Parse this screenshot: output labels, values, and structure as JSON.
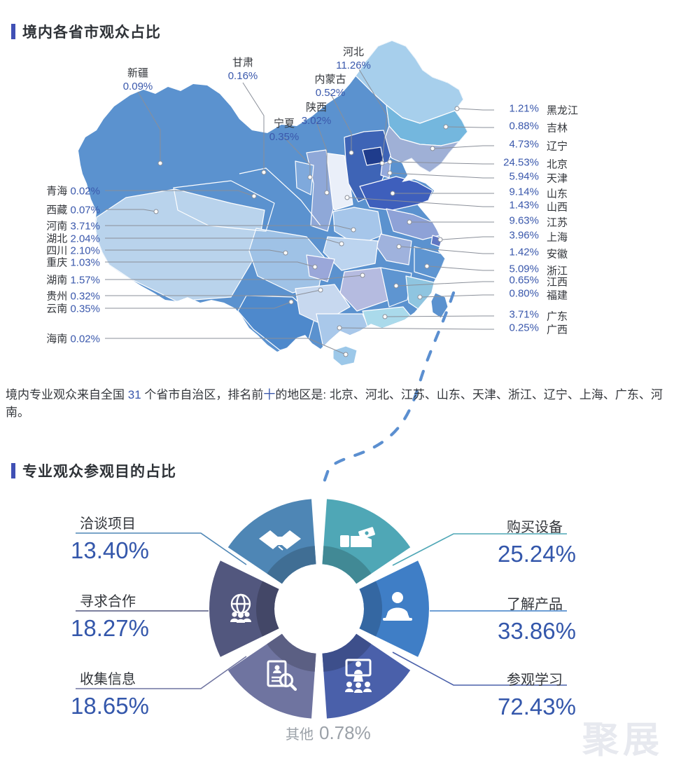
{
  "sections": [
    {
      "title": "境内各省市观众占比"
    },
    {
      "title": "专业观众参观目的占比"
    }
  ],
  "summary": {
    "text_before_count": "境内专业观众来自全国 ",
    "count": "31",
    "text_after_count": " 个省市自治区，排名前",
    "highlight": "十",
    "text_after_highlight": "的地区是: 北京、河北、江苏、山东、天津、浙江、辽宁、上海、广东、河南。"
  },
  "accent_colors": {
    "title_bar": "#4050B5",
    "value_text": "#3A58AC",
    "big_value_text": "#3457AB"
  },
  "chart_data": [
    {
      "type": "choropleth-map",
      "title": "境内各省市观众占比",
      "unit": "%",
      "base_color": "#5B92CF",
      "regions": [
        {
          "name": "新疆",
          "value": 0.09,
          "color": "#5B92CF"
        },
        {
          "name": "甘肃",
          "value": 0.16,
          "color": "#5B92CF"
        },
        {
          "name": "宁夏",
          "value": 0.35,
          "color": "#7FA9DC"
        },
        {
          "name": "陕西",
          "value": 3.02,
          "color": "#8FA8D8"
        },
        {
          "name": "内蒙古",
          "value": 0.52,
          "color": "#5B92CF"
        },
        {
          "name": "河北",
          "value": 11.26,
          "color": "#3E64B6"
        },
        {
          "name": "黑龙江",
          "value": 1.21,
          "color": "#A7CFEC"
        },
        {
          "name": "吉林",
          "value": 0.88,
          "color": "#74B7DE"
        },
        {
          "name": "辽宁",
          "value": 4.73,
          "color": "#9FB0D6"
        },
        {
          "name": "北京",
          "value": 24.53,
          "color": "#1F3C8C"
        },
        {
          "name": "天津",
          "value": 5.94,
          "color": "#93A9DB"
        },
        {
          "name": "山东",
          "value": 9.14,
          "color": "#3E5FBC"
        },
        {
          "name": "山西",
          "value": 1.43,
          "color": "#EAEFF9"
        },
        {
          "name": "江苏",
          "value": 9.63,
          "color": "#8EA2D7"
        },
        {
          "name": "上海",
          "value": 3.96,
          "color": "#5F76C2"
        },
        {
          "name": "安徽",
          "value": 1.42,
          "color": "#9FB2DD"
        },
        {
          "name": "浙江",
          "value": 5.09,
          "color": "#5E95D1"
        },
        {
          "name": "江西",
          "value": 0.65,
          "color": "#5E95D1"
        },
        {
          "name": "福建",
          "value": 0.8,
          "color": "#8FC5E0"
        },
        {
          "name": "广东",
          "value": 3.71,
          "color": "#AADAEB"
        },
        {
          "name": "广西",
          "value": 0.25,
          "color": "#A9C8EA"
        },
        {
          "name": "青海",
          "value": 0.02,
          "color": "#5B92CF"
        },
        {
          "name": "西藏",
          "value": 0.07,
          "color": "#B9D3EC"
        },
        {
          "name": "河南",
          "value": 3.71,
          "color": "#A6C6EA"
        },
        {
          "name": "湖北",
          "value": 2.04,
          "color": "#BCD4EF"
        },
        {
          "name": "四川",
          "value": 2.1,
          "color": "#9FC2E6"
        },
        {
          "name": "重庆",
          "value": 1.03,
          "color": "#9AA7D9"
        },
        {
          "name": "湖南",
          "value": 1.57,
          "color": "#B5BBE0"
        },
        {
          "name": "贵州",
          "value": 0.32,
          "color": "#C7D8EF"
        },
        {
          "name": "云南",
          "value": 0.35,
          "color": "#4E89CC"
        },
        {
          "name": "海南",
          "value": 0.02,
          "color": "#9CC8E9"
        }
      ]
    },
    {
      "type": "donut",
      "title": "专业观众参观目的占比",
      "unit": "%",
      "segments": [
        {
          "label": "购买设备",
          "value": 25.24,
          "color": "#4FA7B6",
          "icon": "hand-money-icon"
        },
        {
          "label": "了解产品",
          "value": 33.86,
          "color": "#3F7EC6",
          "icon": "person-laptop-icon"
        },
        {
          "label": "参观学习",
          "value": 72.43,
          "color": "#4A60AA",
          "icon": "presentation-icon"
        },
        {
          "label": "收集信息",
          "value": 18.65,
          "color": "#6F74A0",
          "icon": "document-search-icon"
        },
        {
          "label": "寻求合作",
          "value": 18.27,
          "color": "#52577E",
          "icon": "globe-team-icon"
        },
        {
          "label": "洽谈项目",
          "value": 13.4,
          "color": "#4E86B5",
          "icon": "handshake-icon"
        }
      ],
      "other": {
        "label": "其他",
        "value": 0.78
      },
      "center_icon": "gear-icon"
    }
  ],
  "watermark": {
    "text": "聚展"
  }
}
